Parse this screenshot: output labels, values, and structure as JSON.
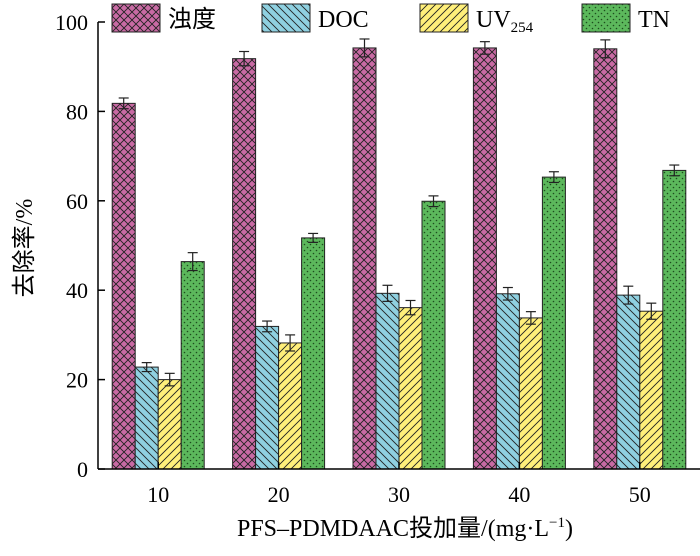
{
  "chart_data": {
    "type": "bar",
    "categories": [
      "10",
      "20",
      "30",
      "40",
      "50"
    ],
    "series": [
      {
        "name": "浊度",
        "values": [
          81.8,
          91.8,
          94.2,
          94.2,
          94.0
        ],
        "errors": [
          1.2,
          1.6,
          2.0,
          1.4,
          2.0
        ],
        "color": "#c96aa4",
        "pattern": "crosshatch"
      },
      {
        "name": "DOC",
        "values": [
          22.8,
          31.9,
          39.3,
          39.2,
          38.9
        ],
        "errors": [
          1.0,
          1.2,
          1.8,
          1.4,
          2.0
        ],
        "color": "#8fd0e0",
        "pattern": "backslash"
      },
      {
        "name": "UV254",
        "name_main": "UV",
        "name_sub": "254",
        "values": [
          20.0,
          28.2,
          36.1,
          33.8,
          35.3
        ],
        "errors": [
          1.4,
          1.8,
          1.6,
          1.4,
          1.8
        ],
        "color": "#ffef7a",
        "pattern": "slash"
      },
      {
        "name": "TN",
        "values": [
          46.4,
          51.7,
          59.9,
          65.3,
          66.8
        ],
        "errors": [
          2.0,
          1.0,
          1.2,
          1.2,
          1.2
        ],
        "color": "#5cb85c",
        "pattern": "dots"
      }
    ],
    "yticks": [
      "0",
      "20",
      "40",
      "60",
      "80",
      "100"
    ],
    "xlabel": "PFS–PDMDAAC投加量/(mg·L",
    "xlabel_sup": "−1",
    "xlabel_end": ")",
    "ylabel": "去除率/%",
    "ylim": [
      0,
      100
    ],
    "legend_position": "top",
    "grid": false
  }
}
